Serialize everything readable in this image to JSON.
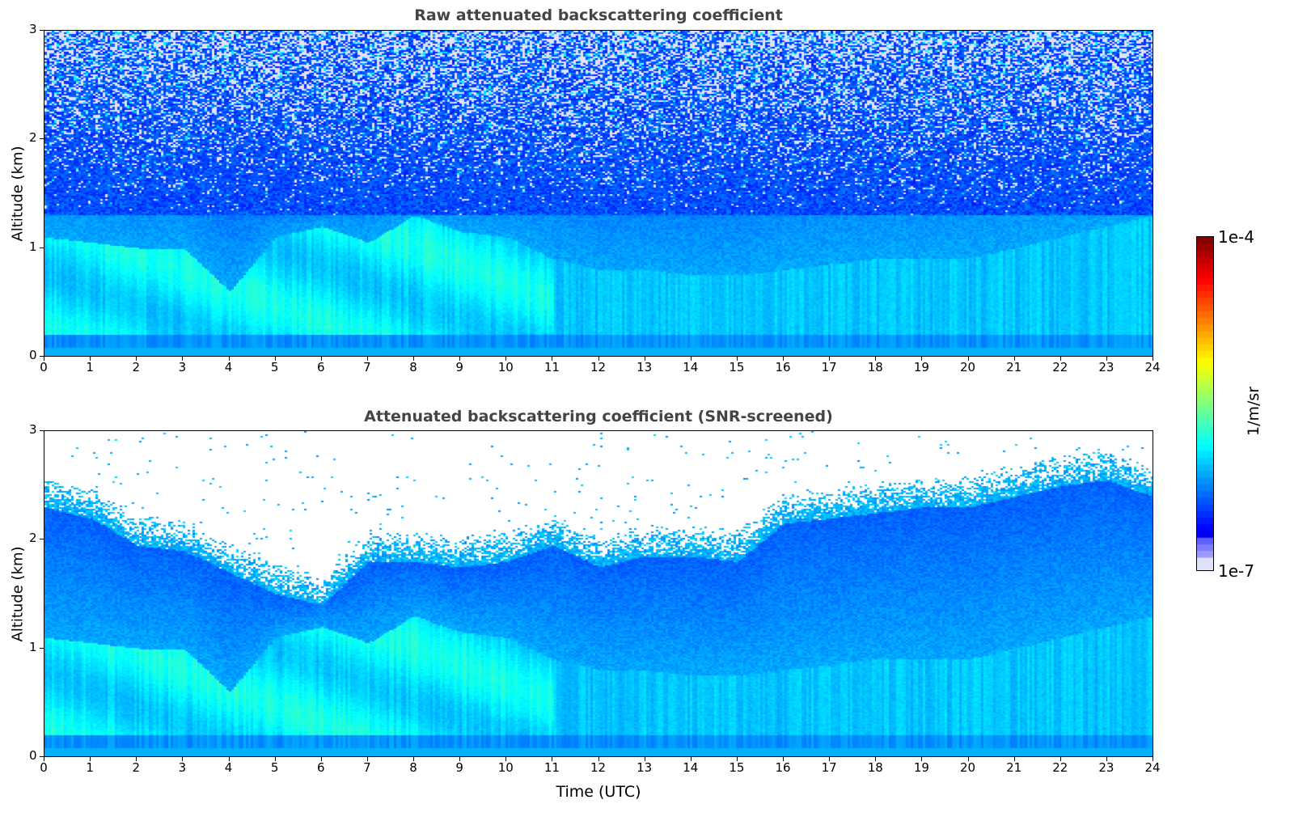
{
  "chart_data": [
    {
      "type": "heatmap",
      "title": "Raw attenuated backscattering coefficient",
      "xlabel": "",
      "ylabel": "Altitude (km)",
      "xlim": [
        0,
        24
      ],
      "ylim": [
        0,
        3
      ],
      "xticks": [
        "0",
        "1",
        "2",
        "3",
        "4",
        "5",
        "6",
        "7",
        "8",
        "9",
        "10",
        "11",
        "12",
        "13",
        "14",
        "15",
        "16",
        "17",
        "18",
        "19",
        "20",
        "21",
        "22",
        "23",
        "24"
      ],
      "yticks": [
        "0",
        "1",
        "2",
        "3"
      ],
      "aerosol_layer_top_km_by_hour": [
        1.1,
        1.05,
        1.0,
        1.0,
        0.6,
        1.1,
        1.2,
        1.05,
        1.3,
        1.15,
        1.1,
        0.9,
        0.8,
        0.8,
        0.75,
        0.75,
        0.8,
        0.85,
        0.9,
        0.9,
        0.9,
        1.0,
        1.1,
        1.2,
        1.3
      ]
    },
    {
      "type": "heatmap",
      "title": "Attenuated backscattering coefficient (SNR-screened)",
      "xlabel": "Time (UTC)",
      "ylabel": "Altitude (km)",
      "xlim": [
        0,
        24
      ],
      "ylim": [
        0,
        3
      ],
      "xticks": [
        "0",
        "1",
        "2",
        "3",
        "4",
        "5",
        "6",
        "7",
        "8",
        "9",
        "10",
        "11",
        "12",
        "13",
        "14",
        "15",
        "16",
        "17",
        "18",
        "19",
        "20",
        "21",
        "22",
        "23",
        "24"
      ],
      "yticks": [
        "0",
        "1",
        "2",
        "3"
      ],
      "snr_screen_top_km_by_hour": [
        2.3,
        2.2,
        1.95,
        1.9,
        1.7,
        1.5,
        1.4,
        1.8,
        1.8,
        1.75,
        1.8,
        1.95,
        1.75,
        1.85,
        1.85,
        1.8,
        2.15,
        2.2,
        2.25,
        2.3,
        2.3,
        2.4,
        2.5,
        2.55,
        2.4
      ]
    }
  ],
  "colorbar": {
    "label": "1/m/sr",
    "max_label": "1e-4",
    "min_label": "1e-7",
    "range": [
      1e-07,
      0.0001
    ],
    "colormap": "jet"
  }
}
